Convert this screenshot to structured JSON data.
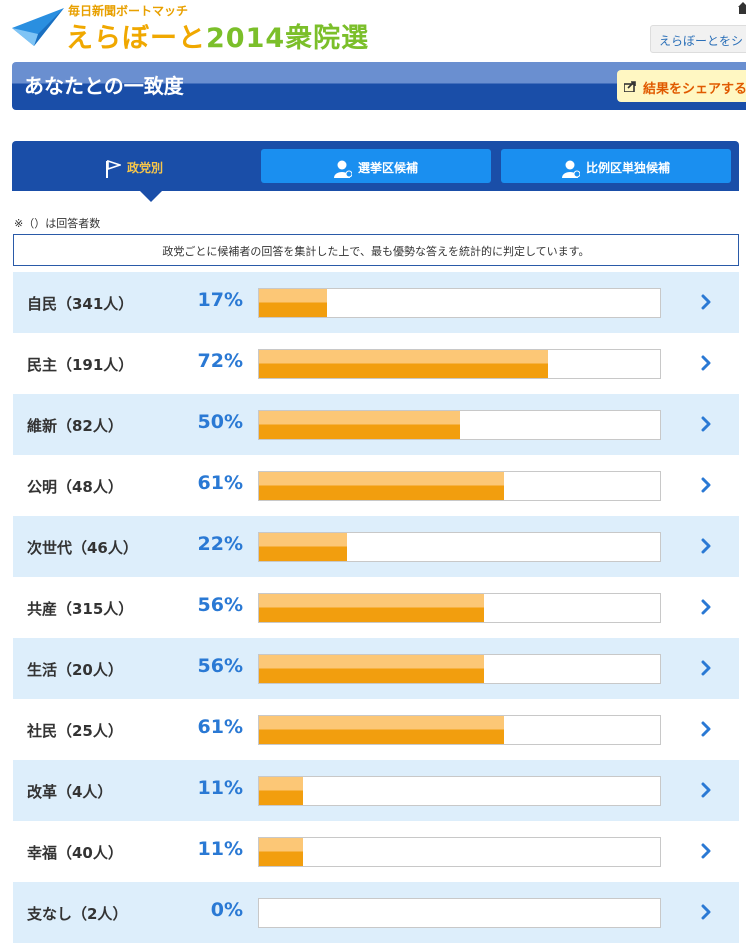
{
  "header": {
    "logo_sub": "毎日新聞ボートマッチ",
    "logo_main": "えらぼーと",
    "logo_year": "2014衆院選",
    "top_link": "えらぼーとをシ"
  },
  "title": {
    "heading": "あなたとの一致度",
    "share_label": "結果をシェアする"
  },
  "tabs": [
    {
      "label": "政党別",
      "icon": "flag-icon",
      "active": true
    },
    {
      "label": "選挙区候補",
      "icon": "person-icon",
      "active": false
    },
    {
      "label": "比例区単独候補",
      "icon": "person-icon",
      "active": false
    }
  ],
  "note": "※（）は回答者数",
  "description": "政党ごとに候補者の回答を集計した上で、最も優勢な答えを統計的に判定しています。",
  "colors": {
    "accent_blue": "#1a4ea8",
    "tab_blue": "#1a8ff0",
    "pct_blue": "#2a79d4",
    "bar_light": "#fcc776",
    "bar_dark": "#f29e0e",
    "row_shade": "#ddeefb"
  },
  "rows": [
    {
      "party": "自民（341人）",
      "pct_label": "17%",
      "value": 17
    },
    {
      "party": "民主（191人）",
      "pct_label": "72%",
      "value": 72
    },
    {
      "party": "維新（82人）",
      "pct_label": "50%",
      "value": 50
    },
    {
      "party": "公明（48人）",
      "pct_label": "61%",
      "value": 61
    },
    {
      "party": "次世代（46人）",
      "pct_label": "22%",
      "value": 22
    },
    {
      "party": "共産（315人）",
      "pct_label": "56%",
      "value": 56
    },
    {
      "party": "生活（20人）",
      "pct_label": "56%",
      "value": 56
    },
    {
      "party": "社民（25人）",
      "pct_label": "61%",
      "value": 61
    },
    {
      "party": "改革（4人）",
      "pct_label": "11%",
      "value": 11
    },
    {
      "party": "幸福（40人）",
      "pct_label": "11%",
      "value": 11
    },
    {
      "party": "支なし（2人）",
      "pct_label": "0%",
      "value": 0
    }
  ]
}
